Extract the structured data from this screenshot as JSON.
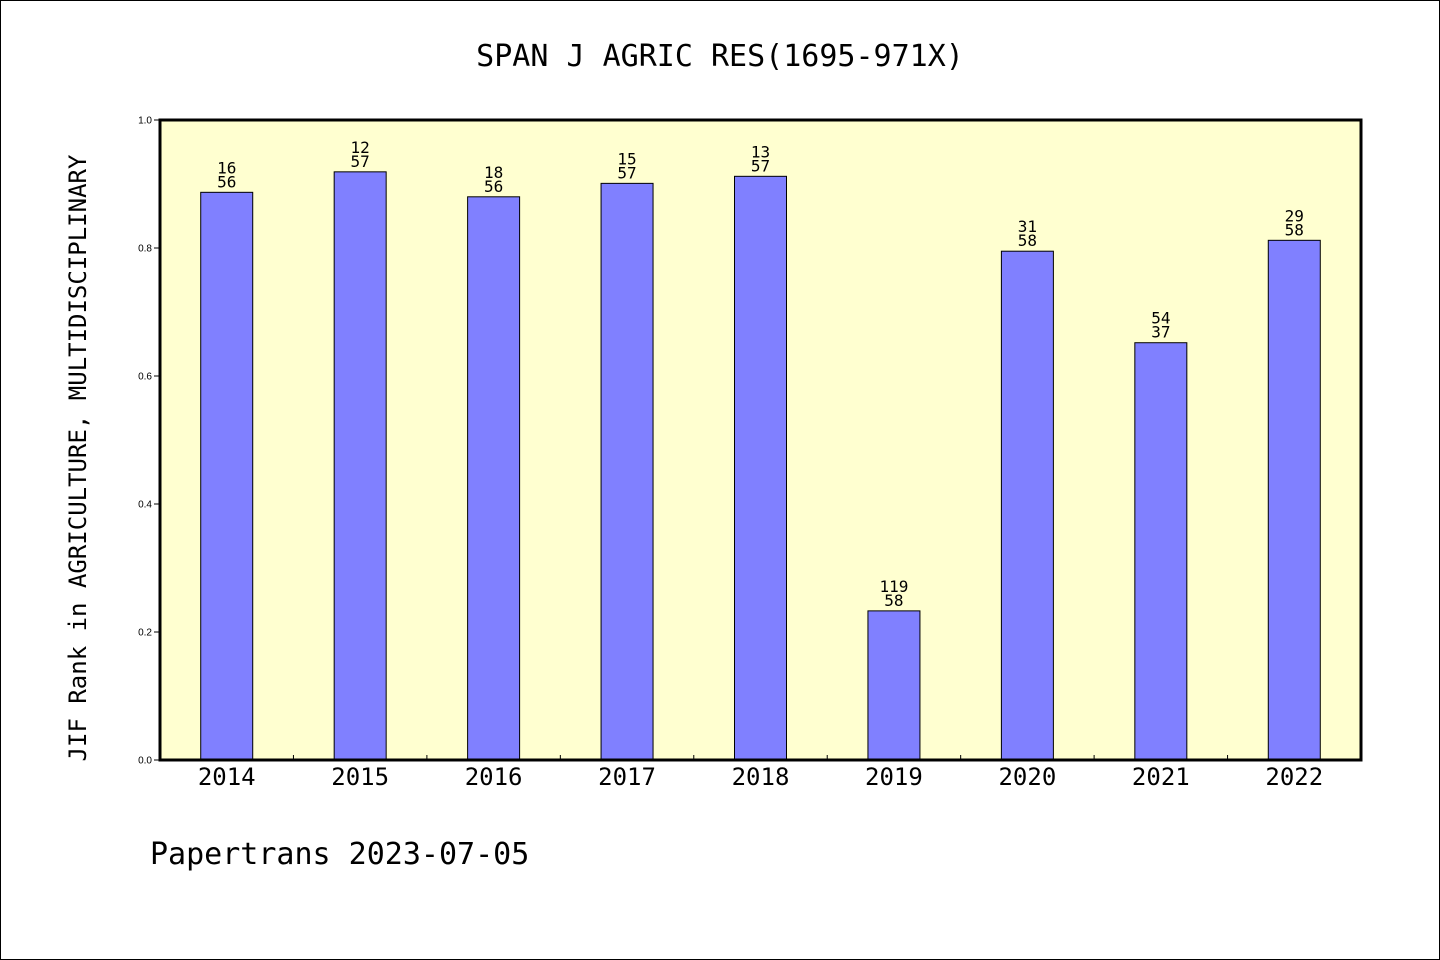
{
  "chart_data": {
    "type": "bar",
    "title": "SPAN J AGRIC RES(1695-971X)",
    "ylabel": "JIF Rank in AGRICULTURE, MULTIDISCIPLINARY",
    "xlabel": "",
    "ylim": [
      0,
      1.0
    ],
    "yticks": [
      "0.0",
      "0.2",
      "0.4",
      "0.6",
      "0.8",
      "1.0"
    ],
    "grid": false,
    "colors": {
      "bar": "#8080ff",
      "plot_background": "#ffffd0",
      "axis": "#000000"
    },
    "categories": [
      "2014",
      "2015",
      "2016",
      "2017",
      "2018",
      "2019",
      "2020",
      "2021",
      "2022"
    ],
    "values": [
      0.887,
      0.919,
      0.88,
      0.901,
      0.912,
      0.233,
      0.795,
      0.652,
      0.812
    ],
    "bar_labels": [
      [
        "16",
        "56"
      ],
      [
        "12",
        "57"
      ],
      [
        "18",
        "56"
      ],
      [
        "15",
        "57"
      ],
      [
        "13",
        "57"
      ],
      [
        "119",
        "58"
      ],
      [
        "31",
        "58"
      ],
      [
        "54",
        "37"
      ],
      [
        "29",
        "58"
      ]
    ]
  },
  "footer": "Papertrans 2023-07-05"
}
